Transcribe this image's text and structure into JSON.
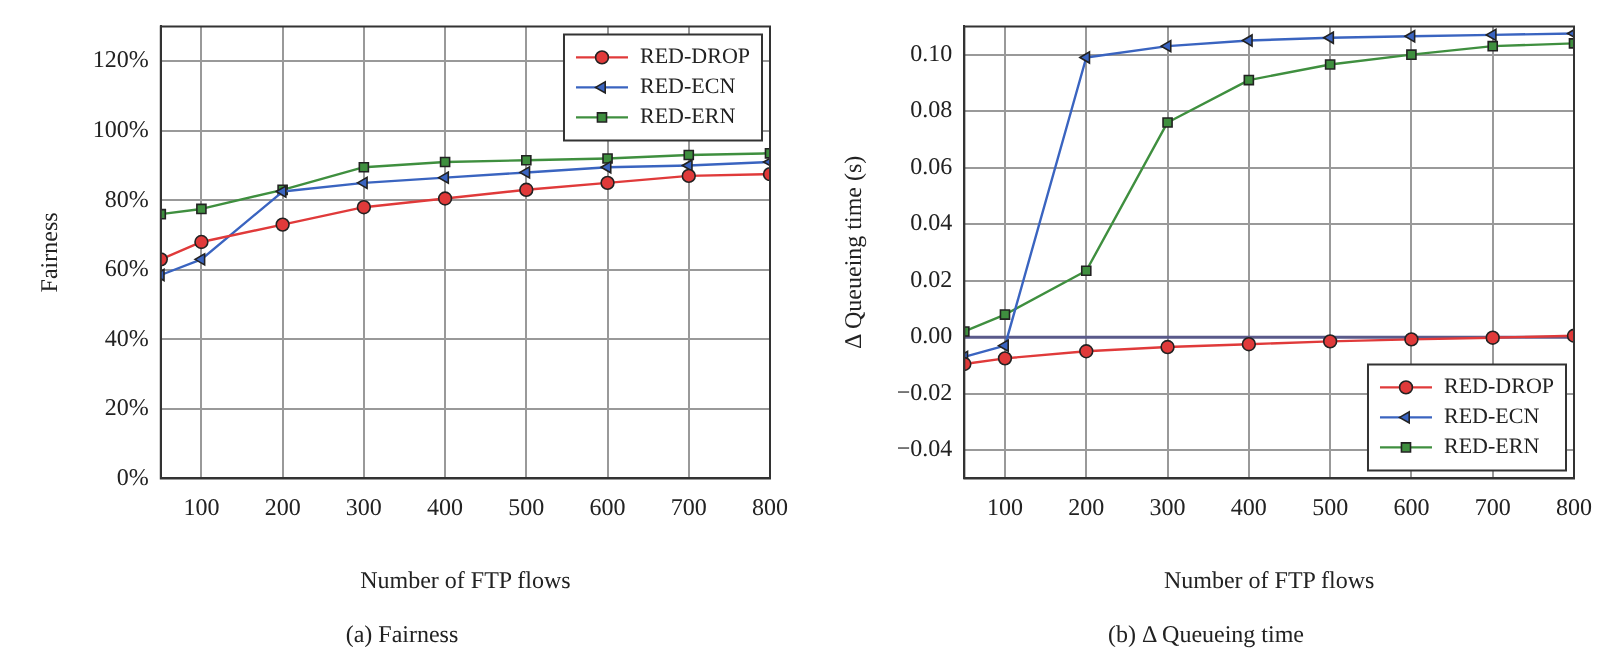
{
  "chart_data": [
    {
      "type": "line",
      "xlabel": "Number of FTP flows",
      "ylabel": "Fairness",
      "x": [
        50,
        100,
        200,
        300,
        400,
        500,
        600,
        700,
        800
      ],
      "xlim": [
        50,
        800
      ],
      "xticks": [
        100,
        200,
        300,
        400,
        500,
        600,
        700,
        800
      ],
      "ylim": [
        0,
        130
      ],
      "yticks": [
        {
          "value": 0,
          "label": "0%"
        },
        {
          "value": 20,
          "label": "20%"
        },
        {
          "value": 40,
          "label": "40%"
        },
        {
          "value": 60,
          "label": "60%"
        },
        {
          "value": 80,
          "label": "80%"
        },
        {
          "value": 100,
          "label": "100%"
        },
        {
          "value": 120,
          "label": "120%"
        }
      ],
      "grid": true,
      "legend": "top right",
      "line_style": "solid",
      "annotations": [
        "(a) Fairness"
      ],
      "series": [
        {
          "name": "RED-DROP",
          "color": "#e03a3a",
          "marker": "circle",
          "values": [
            63,
            68,
            73,
            78,
            80.5,
            83,
            85,
            87,
            87.5
          ]
        },
        {
          "name": "RED-ECN",
          "color": "#3a64c0",
          "marker": "triangle",
          "values": [
            58.5,
            63,
            82.5,
            85,
            86.5,
            88,
            89.5,
            90,
            91
          ]
        },
        {
          "name": "RED-ERN",
          "color": "#3f8f3f",
          "marker": "square",
          "values": [
            76,
            77.5,
            83,
            89.5,
            91,
            91.5,
            92,
            93,
            93.5
          ]
        }
      ]
    },
    {
      "type": "line",
      "xlabel": "Number of FTP flows",
      "ylabel": "Δ Queueing time (s)",
      "x": [
        50,
        100,
        200,
        300,
        400,
        500,
        600,
        700,
        800
      ],
      "xlim": [
        50,
        800
      ],
      "xticks": [
        100,
        200,
        300,
        400,
        500,
        600,
        700,
        800
      ],
      "ylim": [
        -0.05,
        0.11
      ],
      "yticks": [
        {
          "value": -0.04,
          "label": "−0.04"
        },
        {
          "value": -0.02,
          "label": "−0.02"
        },
        {
          "value": 0,
          "label": "0.00"
        },
        {
          "value": 0.02,
          "label": "0.02"
        },
        {
          "value": 0.04,
          "label": "0.04"
        },
        {
          "value": 0.06,
          "label": "0.06"
        },
        {
          "value": 0.08,
          "label": "0.08"
        },
        {
          "value": 0.1,
          "label": "0.10"
        }
      ],
      "grid": true,
      "legend": "bottom right",
      "line_style": "solid",
      "annotations": [
        "(b) Δ Queueing time"
      ],
      "ref_lines": [
        {
          "axis": "y",
          "value": 0,
          "color": "#5a5a8a"
        }
      ],
      "series": [
        {
          "name": "RED-DROP",
          "color": "#e03a3a",
          "marker": "circle",
          "values": [
            -0.0095,
            -0.0075,
            -0.005,
            -0.0035,
            -0.0025,
            -0.0015,
            -0.0008,
            -0.0002,
            0.0005
          ]
        },
        {
          "name": "RED-ECN",
          "color": "#3a64c0",
          "marker": "triangle",
          "values": [
            -0.007,
            -0.003,
            0.099,
            0.103,
            0.105,
            0.106,
            0.1065,
            0.107,
            0.1075
          ]
        },
        {
          "name": "RED-ERN",
          "color": "#3f8f3f",
          "marker": "square",
          "values": [
            0.002,
            0.008,
            0.0235,
            0.076,
            0.091,
            0.0965,
            0.1,
            0.103,
            0.104
          ]
        }
      ]
    }
  ]
}
